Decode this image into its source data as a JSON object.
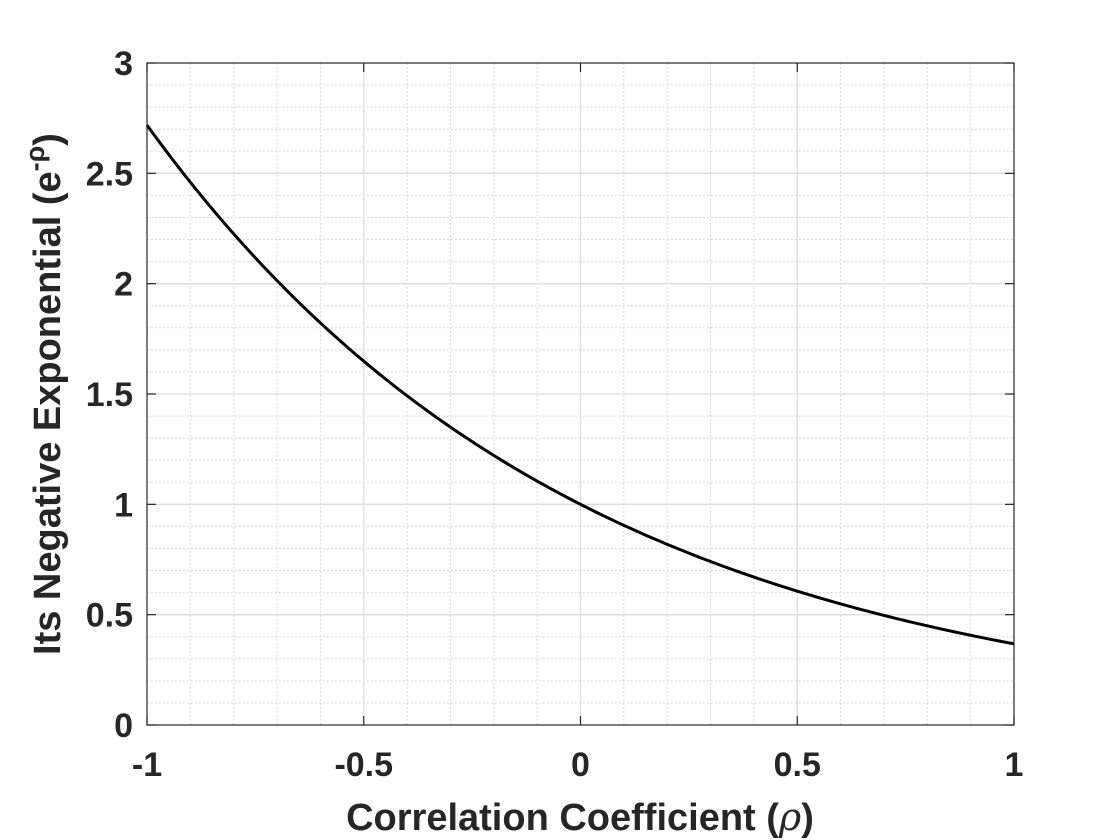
{
  "chart_data": {
    "type": "line",
    "function": "exp(-x)",
    "xlabel": "Correlation Coefficient (ρ)",
    "xlabel_text": "Correlation Coefficient (",
    "xlabel_symbol": "ρ",
    "xlabel_close": ")",
    "ylabel": "Its Negative Exponential (e^-ρ)",
    "ylabel_text": "Its Negative Exponential (e",
    "ylabel_superscript": "-ρ",
    "ylabel_close": ")",
    "xlim": [
      -1,
      1
    ],
    "ylim": [
      0,
      3
    ],
    "xticks": [
      -1,
      -0.5,
      0,
      0.5,
      1
    ],
    "xtick_labels": [
      "-1",
      "-0.5",
      "0",
      "0.5",
      "1"
    ],
    "yticks": [
      0,
      0.5,
      1,
      1.5,
      2,
      2.5,
      3
    ],
    "ytick_labels": [
      "0",
      "0.5",
      "1",
      "1.5",
      "2",
      "2.5",
      "3"
    ],
    "grid": true,
    "minor_grid": true,
    "series": [
      {
        "color": "#000000",
        "x": [
          -1,
          -0.9,
          -0.8,
          -0.7,
          -0.6,
          -0.5,
          -0.4,
          -0.3,
          -0.2,
          -0.1,
          0,
          0.1,
          0.2,
          0.3,
          0.4,
          0.5,
          0.6,
          0.7,
          0.8,
          0.9,
          1
        ],
        "y": [
          2.718,
          2.46,
          2.226,
          2.014,
          1.822,
          1.649,
          1.492,
          1.35,
          1.221,
          1.105,
          1.0,
          0.905,
          0.819,
          0.741,
          0.67,
          0.607,
          0.549,
          0.497,
          0.449,
          0.407,
          0.368
        ]
      }
    ]
  }
}
